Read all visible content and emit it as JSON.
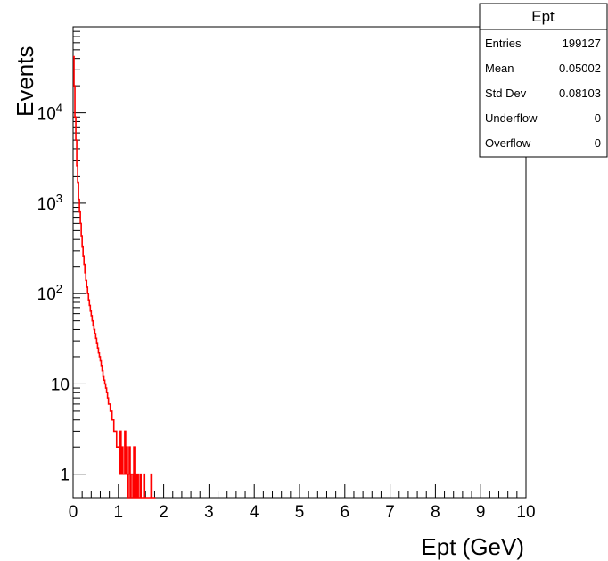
{
  "chart_data": {
    "type": "histogram",
    "title": "",
    "xlabel": "Ept (GeV)",
    "ylabel": "Events",
    "xlim": [
      0,
      10
    ],
    "ylim": [
      0.55,
      90000
    ],
    "log_y": true,
    "x_ticks": [
      "0",
      "1",
      "2",
      "3",
      "4",
      "5",
      "6",
      "7",
      "8",
      "9",
      "10"
    ],
    "y_ticks": [
      {
        "value": 1,
        "base": "1",
        "exp": ""
      },
      {
        "value": 10,
        "base": "10",
        "exp": ""
      },
      {
        "value": 100,
        "base": "10",
        "exp": "2"
      },
      {
        "value": 1000,
        "base": "10",
        "exp": "3"
      },
      {
        "value": 10000,
        "base": "10",
        "exp": "4"
      }
    ],
    "series": [
      {
        "color": "#ff0000",
        "bin_width": 0.02,
        "values": [
          42000,
          20000,
          9000,
          5000,
          2600,
          1700,
          1100,
          800,
          600,
          430,
          330,
          260,
          210,
          170,
          140,
          118,
          100,
          85,
          74,
          64,
          57,
          50,
          44,
          40,
          36,
          32,
          28,
          25,
          22,
          20,
          18,
          16,
          14,
          12,
          11,
          10,
          9,
          8,
          7,
          6,
          6,
          5,
          5,
          4,
          4,
          3,
          3,
          3,
          2,
          2,
          2,
          1,
          3,
          1,
          2,
          1,
          1,
          3,
          1,
          2,
          0,
          1,
          2,
          0,
          1,
          1,
          0,
          2,
          0,
          1,
          0,
          1,
          0,
          0,
          1,
          0,
          0,
          0,
          1,
          0,
          0,
          0,
          0,
          0,
          0,
          0,
          1,
          0,
          0,
          0,
          0
        ]
      }
    ],
    "stats_box": {
      "title": "Ept",
      "rows": [
        {
          "label": "Entries",
          "value": "199127"
        },
        {
          "label": "Mean",
          "value": "0.05002"
        },
        {
          "label": "Std Dev",
          "value": "0.08103"
        },
        {
          "label": "Underflow",
          "value": "0"
        },
        {
          "label": "Overflow",
          "value": "0"
        }
      ]
    }
  }
}
